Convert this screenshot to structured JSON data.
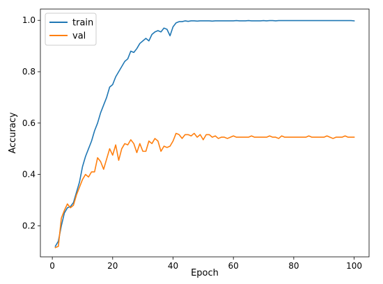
{
  "chart_data": {
    "type": "line",
    "title": "",
    "xlabel": "Epoch",
    "ylabel": "Accuracy",
    "xlim": [
      -3.95,
      104.95
    ],
    "ylim": [
      0.079,
      1.044
    ],
    "xticks": [
      0,
      20,
      40,
      60,
      80,
      100
    ],
    "yticks": [
      0.2,
      0.4,
      0.6,
      0.8,
      1.0
    ],
    "xtick_labels": [
      "0",
      "20",
      "40",
      "60",
      "80",
      "100"
    ],
    "ytick_labels": [
      "0.2",
      "0.4",
      "0.6",
      "0.8",
      "1.0"
    ],
    "grid": false,
    "legend": {
      "position": "top-left"
    },
    "x": [
      1,
      2,
      3,
      4,
      5,
      6,
      7,
      8,
      9,
      10,
      11,
      12,
      13,
      14,
      15,
      16,
      17,
      18,
      19,
      20,
      21,
      22,
      23,
      24,
      25,
      26,
      27,
      28,
      29,
      30,
      31,
      32,
      33,
      34,
      35,
      36,
      37,
      38,
      39,
      40,
      41,
      42,
      43,
      44,
      45,
      46,
      47,
      48,
      49,
      50,
      51,
      52,
      53,
      54,
      55,
      56,
      57,
      58,
      59,
      60,
      61,
      62,
      63,
      64,
      65,
      66,
      67,
      68,
      69,
      70,
      71,
      72,
      73,
      74,
      75,
      76,
      77,
      78,
      79,
      80,
      81,
      82,
      83,
      84,
      85,
      86,
      87,
      88,
      89,
      90,
      91,
      92,
      93,
      94,
      95,
      96,
      97,
      98,
      99,
      100
    ],
    "series": [
      {
        "name": "train",
        "color": "#1f77b4",
        "values": [
          0.12,
          0.14,
          0.2,
          0.25,
          0.27,
          0.275,
          0.29,
          0.33,
          0.37,
          0.43,
          0.47,
          0.5,
          0.53,
          0.57,
          0.6,
          0.64,
          0.67,
          0.7,
          0.74,
          0.75,
          0.78,
          0.8,
          0.82,
          0.84,
          0.85,
          0.88,
          0.875,
          0.89,
          0.91,
          0.92,
          0.93,
          0.92,
          0.945,
          0.955,
          0.96,
          0.955,
          0.97,
          0.965,
          0.94,
          0.975,
          0.99,
          0.995,
          0.995,
          0.998,
          0.996,
          0.998,
          0.998,
          0.997,
          0.998,
          0.998,
          0.998,
          0.998,
          0.997,
          0.998,
          0.998,
          0.998,
          0.998,
          0.998,
          0.998,
          0.998,
          0.999,
          0.998,
          0.998,
          0.998,
          0.999,
          0.998,
          0.998,
          0.998,
          0.998,
          0.999,
          0.998,
          0.999,
          0.999,
          0.998,
          0.999,
          0.999,
          0.999,
          0.999,
          0.999,
          0.999,
          0.999,
          0.999,
          0.999,
          0.999,
          0.999,
          0.999,
          0.999,
          0.999,
          0.999,
          0.999,
          0.999,
          0.999,
          0.999,
          0.999,
          0.999,
          0.999,
          0.999,
          0.999,
          0.999,
          0.998
        ]
      },
      {
        "name": "val",
        "color": "#ff7f0e",
        "values": [
          0.115,
          0.12,
          0.23,
          0.26,
          0.285,
          0.27,
          0.28,
          0.32,
          0.35,
          0.38,
          0.4,
          0.39,
          0.41,
          0.41,
          0.465,
          0.45,
          0.42,
          0.46,
          0.5,
          0.475,
          0.515,
          0.455,
          0.5,
          0.52,
          0.515,
          0.535,
          0.52,
          0.485,
          0.52,
          0.49,
          0.49,
          0.53,
          0.52,
          0.54,
          0.53,
          0.49,
          0.51,
          0.505,
          0.51,
          0.53,
          0.56,
          0.555,
          0.54,
          0.555,
          0.555,
          0.55,
          0.56,
          0.545,
          0.555,
          0.535,
          0.555,
          0.555,
          0.545,
          0.55,
          0.54,
          0.545,
          0.545,
          0.54,
          0.545,
          0.55,
          0.545,
          0.545,
          0.545,
          0.545,
          0.545,
          0.55,
          0.545,
          0.545,
          0.545,
          0.545,
          0.545,
          0.55,
          0.545,
          0.545,
          0.54,
          0.55,
          0.545,
          0.545,
          0.545,
          0.545,
          0.545,
          0.545,
          0.545,
          0.545,
          0.55,
          0.545,
          0.545,
          0.545,
          0.545,
          0.545,
          0.55,
          0.545,
          0.54,
          0.545,
          0.545,
          0.545,
          0.55,
          0.545,
          0.545,
          0.545
        ]
      }
    ]
  }
}
